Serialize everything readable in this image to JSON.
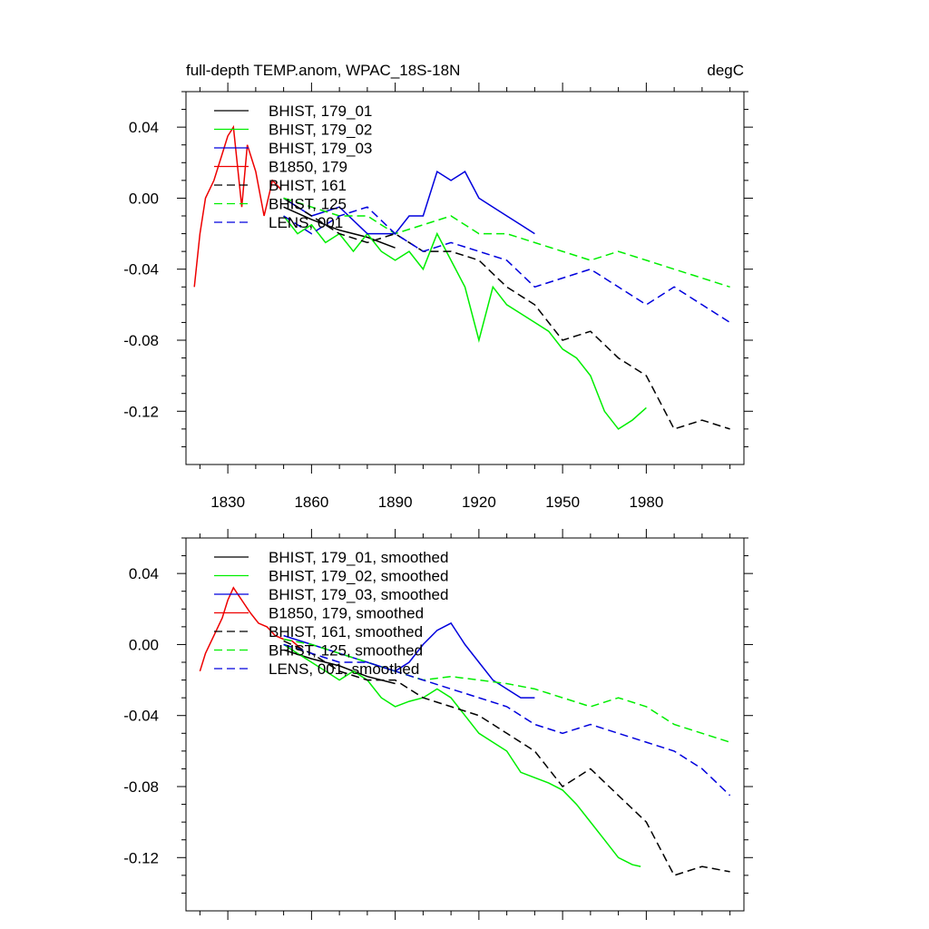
{
  "chart_data": [
    {
      "type": "line",
      "title": "full-depth TEMP.anom, WPAC_18S-18N",
      "units": "degC",
      "xlabel": "",
      "ylabel": "",
      "xlim": [
        1815,
        2015
      ],
      "ylim": [
        -0.15,
        0.06
      ],
      "xticks": [
        1830,
        1860,
        1890,
        1920,
        1950,
        1980
      ],
      "xtick_labels": [
        "1830",
        "1860",
        "1890",
        "1920",
        "1950",
        "1980"
      ],
      "yticks": [
        0.04,
        0.0,
        -0.04,
        -0.08,
        -0.12
      ],
      "ytick_labels": [
        "0.04",
        "0.00",
        "-0.04",
        "-0.08",
        "-0.12"
      ],
      "grid": false,
      "legend_position": "top-left",
      "series": [
        {
          "name": "BHIST, 179_01",
          "color": "#000000",
          "dash": "solid",
          "x": [
            1850,
            1860,
            1870,
            1880,
            1890
          ],
          "y": [
            -0.005,
            -0.012,
            -0.018,
            -0.022,
            -0.028
          ]
        },
        {
          "name": "BHIST, 179_02",
          "color": "#00ee00",
          "dash": "solid",
          "x": [
            1850,
            1855,
            1860,
            1865,
            1870,
            1875,
            1880,
            1885,
            1890,
            1895,
            1900,
            1905,
            1910,
            1915,
            1920,
            1925,
            1930,
            1935,
            1940,
            1945,
            1950,
            1955,
            1960,
            1965,
            1970,
            1975,
            1980
          ],
          "y": [
            -0.01,
            -0.02,
            -0.015,
            -0.025,
            -0.02,
            -0.03,
            -0.02,
            -0.03,
            -0.035,
            -0.03,
            -0.04,
            -0.02,
            -0.035,
            -0.05,
            -0.08,
            -0.05,
            -0.06,
            -0.065,
            -0.07,
            -0.075,
            -0.085,
            -0.09,
            -0.1,
            -0.12,
            -0.13,
            -0.125,
            -0.118
          ]
        },
        {
          "name": "BHIST, 179_03",
          "color": "#0000dd",
          "dash": "solid",
          "x": [
            1850,
            1860,
            1870,
            1880,
            1890,
            1895,
            1900,
            1905,
            1910,
            1915,
            1920,
            1925,
            1930,
            1935,
            1940
          ],
          "y": [
            0.0,
            -0.01,
            -0.005,
            -0.02,
            -0.02,
            -0.01,
            -0.01,
            0.015,
            0.01,
            0.015,
            0.0,
            -0.005,
            -0.01,
            -0.015,
            -0.02
          ]
        },
        {
          "name": "B1850, 179",
          "color": "#ee0000",
          "dash": "solid",
          "x": [
            1818,
            1820,
            1822,
            1825,
            1828,
            1830,
            1832,
            1835,
            1837,
            1840,
            1843,
            1846,
            1849
          ],
          "y": [
            -0.05,
            -0.02,
            0.0,
            0.01,
            0.025,
            0.035,
            0.04,
            -0.005,
            0.03,
            0.015,
            -0.01,
            0.01,
            0.005
          ]
        },
        {
          "name": "BHIST, 161",
          "color": "#000000",
          "dash": "dashed",
          "x": [
            1850,
            1860,
            1870,
            1880,
            1890,
            1900,
            1910,
            1920,
            1930,
            1940,
            1950,
            1960,
            1970,
            1980,
            1990,
            2000,
            2010
          ],
          "y": [
            0.0,
            -0.01,
            -0.02,
            -0.025,
            -0.02,
            -0.03,
            -0.03,
            -0.035,
            -0.05,
            -0.06,
            -0.08,
            -0.075,
            -0.09,
            -0.1,
            -0.13,
            -0.125,
            -0.13
          ]
        },
        {
          "name": "BHIST, 125",
          "color": "#00ee00",
          "dash": "dashed",
          "x": [
            1850,
            1860,
            1870,
            1880,
            1890,
            1900,
            1910,
            1920,
            1930,
            1940,
            1950,
            1960,
            1970,
            1980,
            1990,
            2000,
            2010
          ],
          "y": [
            0.0,
            -0.005,
            -0.01,
            -0.01,
            -0.02,
            -0.015,
            -0.01,
            -0.02,
            -0.02,
            -0.025,
            -0.03,
            -0.035,
            -0.03,
            -0.035,
            -0.04,
            -0.045,
            -0.05
          ]
        },
        {
          "name": "LENS, 001",
          "color": "#0000dd",
          "dash": "dashed",
          "x": [
            1850,
            1860,
            1870,
            1880,
            1890,
            1900,
            1910,
            1920,
            1930,
            1940,
            1950,
            1960,
            1970,
            1980,
            1990,
            2000,
            2010
          ],
          "y": [
            -0.01,
            -0.02,
            -0.01,
            -0.005,
            -0.02,
            -0.03,
            -0.025,
            -0.03,
            -0.035,
            -0.05,
            -0.045,
            -0.04,
            -0.05,
            -0.06,
            -0.05,
            -0.06,
            -0.07
          ]
        }
      ]
    },
    {
      "type": "line",
      "title": "",
      "xlabel": "",
      "ylabel": "",
      "xlim": [
        1815,
        2015
      ],
      "ylim": [
        -0.15,
        0.06
      ],
      "xticks": [
        1830,
        1860,
        1890,
        1920,
        1950,
        1980
      ],
      "yticks": [
        0.04,
        0.0,
        -0.04,
        -0.08,
        -0.12
      ],
      "ytick_labels": [
        "0.04",
        "0.00",
        "-0.04",
        "-0.08",
        "-0.12"
      ],
      "grid": false,
      "legend_position": "top-left",
      "series": [
        {
          "name": "BHIST, 179_01, smoothed",
          "color": "#000000",
          "dash": "solid",
          "x": [
            1850,
            1860,
            1870,
            1880,
            1890
          ],
          "y": [
            -0.003,
            -0.008,
            -0.012,
            -0.018,
            -0.022
          ]
        },
        {
          "name": "BHIST, 179_02, smoothed",
          "color": "#00ee00",
          "dash": "solid",
          "x": [
            1850,
            1855,
            1860,
            1865,
            1870,
            1875,
            1880,
            1885,
            1890,
            1895,
            1900,
            1905,
            1910,
            1915,
            1920,
            1925,
            1930,
            1935,
            1940,
            1945,
            1950,
            1955,
            1960,
            1965,
            1970,
            1975,
            1978
          ],
          "y": [
            0.0,
            -0.005,
            -0.01,
            -0.015,
            -0.02,
            -0.015,
            -0.02,
            -0.03,
            -0.035,
            -0.032,
            -0.03,
            -0.025,
            -0.03,
            -0.04,
            -0.05,
            -0.055,
            -0.06,
            -0.072,
            -0.075,
            -0.078,
            -0.082,
            -0.09,
            -0.1,
            -0.11,
            -0.12,
            -0.124,
            -0.125
          ]
        },
        {
          "name": "BHIST, 179_03, smoothed",
          "color": "#0000dd",
          "dash": "solid",
          "x": [
            1850,
            1860,
            1870,
            1880,
            1890,
            1895,
            1900,
            1905,
            1910,
            1915,
            1920,
            1925,
            1930,
            1935,
            1940
          ],
          "y": [
            0.005,
            0.0,
            -0.005,
            -0.01,
            -0.015,
            -0.01,
            0.0,
            0.008,
            0.012,
            0.0,
            -0.01,
            -0.02,
            -0.025,
            -0.03,
            -0.03
          ]
        },
        {
          "name": "B1850, 179, smoothed",
          "color": "#ee0000",
          "dash": "solid",
          "x": [
            1820,
            1822,
            1825,
            1828,
            1830,
            1832,
            1835,
            1838,
            1841,
            1844,
            1847,
            1850,
            1853,
            1856
          ],
          "y": [
            -0.015,
            -0.005,
            0.005,
            0.015,
            0.025,
            0.032,
            0.025,
            0.018,
            0.012,
            0.01,
            0.005,
            0.003,
            0.002,
            -0.002
          ]
        },
        {
          "name": "BHIST, 161, smoothed",
          "color": "#000000",
          "dash": "dashed",
          "x": [
            1850,
            1860,
            1870,
            1880,
            1890,
            1900,
            1910,
            1920,
            1930,
            1940,
            1950,
            1960,
            1970,
            1980,
            1990,
            2000,
            2010
          ],
          "y": [
            0.002,
            -0.005,
            -0.015,
            -0.02,
            -0.02,
            -0.03,
            -0.035,
            -0.04,
            -0.05,
            -0.06,
            -0.08,
            -0.07,
            -0.085,
            -0.1,
            -0.13,
            -0.125,
            -0.128
          ]
        },
        {
          "name": "BHIST, 125, smoothed",
          "color": "#00ee00",
          "dash": "dashed",
          "x": [
            1850,
            1860,
            1870,
            1880,
            1890,
            1900,
            1910,
            1920,
            1930,
            1940,
            1950,
            1960,
            1970,
            1980,
            1990,
            2000,
            2010
          ],
          "y": [
            0.003,
            0.0,
            -0.005,
            -0.01,
            -0.015,
            -0.02,
            -0.018,
            -0.02,
            -0.022,
            -0.025,
            -0.03,
            -0.035,
            -0.03,
            -0.035,
            -0.045,
            -0.05,
            -0.055
          ]
        },
        {
          "name": "LENS, 001, smoothed",
          "color": "#0000dd",
          "dash": "dashed",
          "x": [
            1850,
            1860,
            1870,
            1880,
            1890,
            1900,
            1910,
            1920,
            1930,
            1940,
            1950,
            1960,
            1970,
            1980,
            1990,
            2000,
            2010
          ],
          "y": [
            0.0,
            -0.005,
            -0.01,
            -0.01,
            -0.015,
            -0.02,
            -0.025,
            -0.03,
            -0.035,
            -0.045,
            -0.05,
            -0.045,
            -0.05,
            -0.055,
            -0.06,
            -0.07,
            -0.085
          ]
        }
      ]
    }
  ]
}
